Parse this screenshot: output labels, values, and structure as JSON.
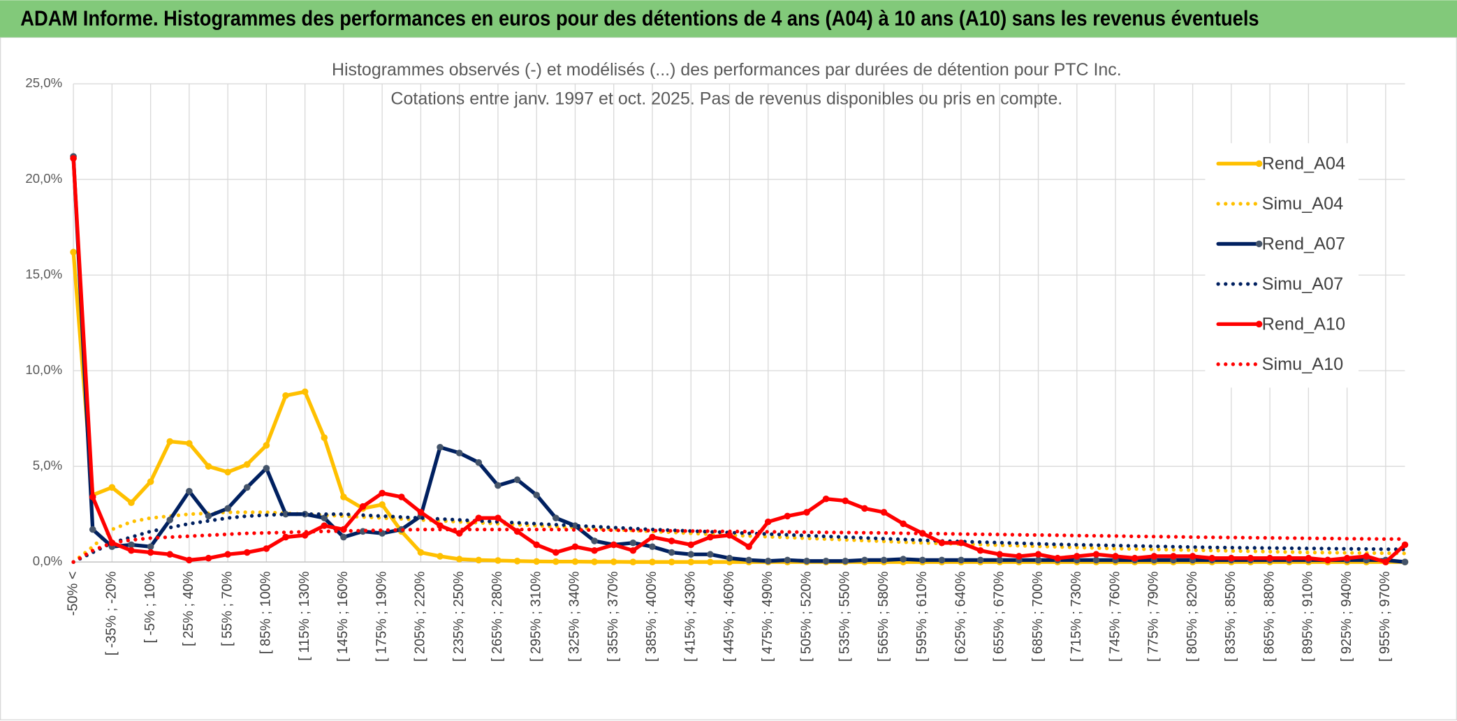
{
  "header": {
    "title": "ADAM Informe. Histogrammes des performances en euros pour des détentions de 4 ans (A04) à 10 ans (A10) sans les revenus éventuels"
  },
  "chart_data": {
    "type": "line",
    "title": "Histogrammes observés (-) et modélisés (...) des performances par durées de détention pour PTC Inc.",
    "subtitle": "Cotations entre janv. 1997 et oct. 2025. Pas de revenus disponibles ou pris en compte.",
    "categories": [
      "-50% <",
      null,
      "[ -35% ; -20%",
      null,
      "[ -5% ; 10%",
      null,
      "[ 25% ; 40%",
      null,
      "[ 55% ; 70%",
      null,
      "[ 85% ; 100%",
      null,
      "[ 115% ; 130%",
      null,
      "[ 145% ; 160%",
      null,
      "[ 175% ; 190%",
      null,
      "[ 205% ; 220%",
      null,
      "[ 235% ; 250%",
      null,
      "[ 265% ; 280%",
      null,
      "[ 295% ; 310%",
      null,
      "[ 325% ; 340%",
      null,
      "[ 355% ; 370%",
      null,
      "[ 385% ; 400%",
      null,
      "[ 415% ; 430%",
      null,
      "[ 445% ; 460%",
      null,
      "[ 475% ; 490%",
      null,
      "[ 505% ; 520%",
      null,
      "[ 535% ; 550%",
      null,
      "[ 565% ; 580%",
      null,
      "[ 595% ; 610%",
      null,
      "[ 625% ; 640%",
      null,
      "[ 655% ; 670%",
      null,
      "[ 685% ; 700%",
      null,
      "[ 715% ; 730%",
      null,
      "[ 745% ; 760%",
      null,
      "[ 775% ; 790%",
      null,
      "[ 805% ; 820%",
      null,
      "[ 835% ; 850%",
      null,
      "[ 865% ; 880%",
      null,
      "[ 895% ; 910%",
      null,
      "[ 925% ; 940%",
      null,
      "[ 955% ; 970%",
      null
    ],
    "series": [
      {
        "name": "Rend_A04",
        "color": "#FFC000",
        "marker_color": "#FFC000",
        "style": "solid",
        "markers": true,
        "values": [
          16.2,
          3.5,
          3.9,
          3.1,
          4.2,
          6.3,
          6.2,
          5.0,
          4.7,
          5.1,
          6.1,
          8.7,
          8.9,
          6.5,
          3.4,
          2.8,
          3.0,
          1.6,
          0.5,
          0.3,
          0.15,
          0.1,
          0.08,
          0.05,
          0.03,
          0.02,
          0.02,
          0.01,
          0.01,
          0,
          0,
          0,
          0,
          0,
          0,
          0,
          0,
          0,
          0,
          0,
          0,
          0,
          0,
          0,
          0,
          0,
          0,
          0,
          0,
          0,
          0,
          0,
          0,
          0,
          0,
          0,
          0,
          0,
          0,
          0,
          0,
          0,
          0,
          0,
          0,
          0,
          0,
          0,
          0,
          0
        ]
      },
      {
        "name": "Simu_A04",
        "color": "#FFC000",
        "style": "dotted",
        "markers": false,
        "values": [
          0,
          0.8,
          1.7,
          2.1,
          2.3,
          2.4,
          2.5,
          2.55,
          2.6,
          2.6,
          2.6,
          2.55,
          2.5,
          2.45,
          2.4,
          2.35,
          2.3,
          2.25,
          2.2,
          2.15,
          2.1,
          2.05,
          2.0,
          1.95,
          1.9,
          1.85,
          1.8,
          1.75,
          1.7,
          1.65,
          1.6,
          1.55,
          1.5,
          1.45,
          1.4,
          1.36,
          1.32,
          1.28,
          1.24,
          1.2,
          1.16,
          1.12,
          1.08,
          1.04,
          1.0,
          0.97,
          0.94,
          0.91,
          0.88,
          0.85,
          0.82,
          0.79,
          0.76,
          0.73,
          0.7,
          0.68,
          0.66,
          0.64,
          0.62,
          0.6,
          0.58,
          0.56,
          0.54,
          0.52,
          0.5,
          0.49,
          0.48,
          0.47,
          0.46,
          0.45
        ]
      },
      {
        "name": "Rend_A07",
        "color": "#002060",
        "marker_color": "#44546A",
        "style": "solid",
        "markers": true,
        "values": [
          21.2,
          1.7,
          0.8,
          0.9,
          0.8,
          2.2,
          3.7,
          2.4,
          2.8,
          3.9,
          4.9,
          2.5,
          2.5,
          2.3,
          1.3,
          1.6,
          1.5,
          1.7,
          2.4,
          6.0,
          5.7,
          5.2,
          4.0,
          4.3,
          3.5,
          2.3,
          1.9,
          1.1,
          0.9,
          1.0,
          0.8,
          0.5,
          0.4,
          0.4,
          0.2,
          0.1,
          0.05,
          0.1,
          0.05,
          0.05,
          0.05,
          0.1,
          0.1,
          0.15,
          0.1,
          0.1,
          0.1,
          0.1,
          0.1,
          0.1,
          0.1,
          0.1,
          0.1,
          0.1,
          0.1,
          0.1,
          0.1,
          0.1,
          0.1,
          0.1,
          0.1,
          0.1,
          0.1,
          0.1,
          0.1,
          0.1,
          0.1,
          0.1,
          0.1,
          0
        ]
      },
      {
        "name": "Simu_A07",
        "color": "#002060",
        "style": "dotted",
        "markers": false,
        "values": [
          0,
          0.5,
          1.0,
          1.3,
          1.6,
          1.8,
          2.0,
          2.15,
          2.3,
          2.4,
          2.45,
          2.5,
          2.5,
          2.5,
          2.5,
          2.45,
          2.4,
          2.35,
          2.3,
          2.25,
          2.2,
          2.15,
          2.1,
          2.05,
          2.0,
          1.95,
          1.9,
          1.85,
          1.8,
          1.75,
          1.7,
          1.66,
          1.62,
          1.58,
          1.54,
          1.5,
          1.46,
          1.42,
          1.38,
          1.34,
          1.3,
          1.26,
          1.22,
          1.18,
          1.14,
          1.1,
          1.07,
          1.04,
          1.01,
          0.98,
          0.95,
          0.92,
          0.9,
          0.88,
          0.86,
          0.84,
          0.82,
          0.8,
          0.78,
          0.76,
          0.75,
          0.74,
          0.73,
          0.72,
          0.71,
          0.7,
          0.69,
          0.68,
          0.67,
          0.66
        ]
      },
      {
        "name": "Rend_A10",
        "color": "#FF0000",
        "marker_color": "#FF0000",
        "style": "solid",
        "markers": true,
        "values": [
          21.1,
          3.4,
          1.0,
          0.6,
          0.5,
          0.4,
          0.1,
          0.2,
          0.4,
          0.5,
          0.7,
          1.3,
          1.4,
          1.9,
          1.7,
          2.9,
          3.6,
          3.4,
          2.6,
          1.9,
          1.5,
          2.3,
          2.3,
          1.6,
          0.9,
          0.5,
          0.8,
          0.6,
          0.9,
          0.6,
          1.3,
          1.1,
          0.9,
          1.3,
          1.4,
          0.8,
          2.1,
          2.4,
          2.6,
          3.3,
          3.2,
          2.8,
          2.6,
          2.0,
          1.5,
          1.0,
          1.0,
          0.6,
          0.4,
          0.3,
          0.4,
          0.2,
          0.3,
          0.4,
          0.3,
          0.2,
          0.3,
          0.3,
          0.3,
          0.2,
          0.2,
          0.2,
          0.2,
          0.2,
          0.2,
          0.1,
          0.2,
          0.3,
          0.0,
          0.9
        ]
      },
      {
        "name": "Simu_A10",
        "color": "#FF0000",
        "style": "dotted",
        "markers": false,
        "values": [
          0,
          0.6,
          1.0,
          1.15,
          1.25,
          1.3,
          1.35,
          1.4,
          1.45,
          1.5,
          1.52,
          1.55,
          1.58,
          1.6,
          1.62,
          1.64,
          1.66,
          1.68,
          1.7,
          1.7,
          1.7,
          1.7,
          1.7,
          1.7,
          1.7,
          1.7,
          1.68,
          1.67,
          1.66,
          1.65,
          1.64,
          1.63,
          1.62,
          1.61,
          1.6,
          1.59,
          1.58,
          1.57,
          1.56,
          1.55,
          1.54,
          1.53,
          1.52,
          1.5,
          1.49,
          1.48,
          1.46,
          1.45,
          1.44,
          1.42,
          1.41,
          1.4,
          1.38,
          1.37,
          1.36,
          1.34,
          1.33,
          1.32,
          1.3,
          1.29,
          1.28,
          1.27,
          1.26,
          1.25,
          1.24,
          1.23,
          1.22,
          1.21,
          1.2,
          1.2
        ]
      }
    ],
    "ylim": [
      0,
      25
    ],
    "yticks": [
      {
        "value": 0,
        "label": "0,0%"
      },
      {
        "value": 5,
        "label": "5,0%"
      },
      {
        "value": 10,
        "label": "10,0%"
      },
      {
        "value": 15,
        "label": "15,0%"
      },
      {
        "value": 20,
        "label": "20,0%"
      },
      {
        "value": 25,
        "label": "25,0%"
      }
    ],
    "grid": true,
    "legend": "right"
  }
}
